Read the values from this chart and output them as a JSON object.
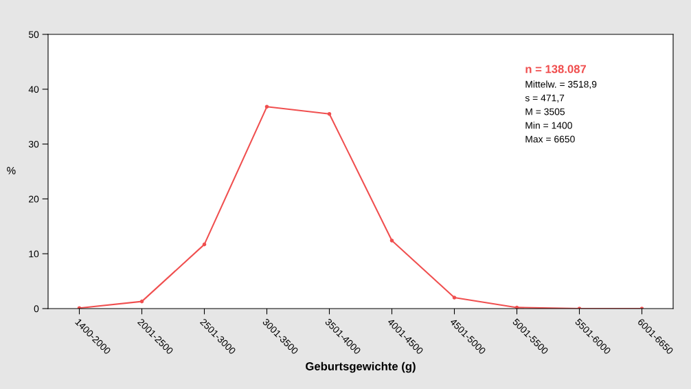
{
  "chart_data": {
    "type": "line",
    "xlabel": "Geburtsgewichte (g)",
    "ylabel": "%",
    "categories": [
      "1400-2000",
      "2001-2500",
      "2501-3000",
      "3001-3500",
      "3501-4000",
      "4001-4500",
      "4501-5000",
      "5001-5500",
      "5501-6000",
      "6001-6650"
    ],
    "series": [
      {
        "color": "#f04f4f",
        "values": [
          0.1,
          1.3,
          11.7,
          36.8,
          35.5,
          12.4,
          2.0,
          0.2,
          0.0,
          0.0
        ]
      }
    ],
    "ylim": [
      0,
      50
    ],
    "yticks": [
      0,
      10,
      20,
      30,
      40,
      50
    ],
    "grid": false,
    "legend": false,
    "marker": "circle",
    "line_style": "solid",
    "annotations": [
      "n = 138.087",
      "Mittelw. = 3518,9",
      "s = 471,7",
      "M = 3505",
      "Min = 1400",
      "Max = 6650"
    ]
  }
}
